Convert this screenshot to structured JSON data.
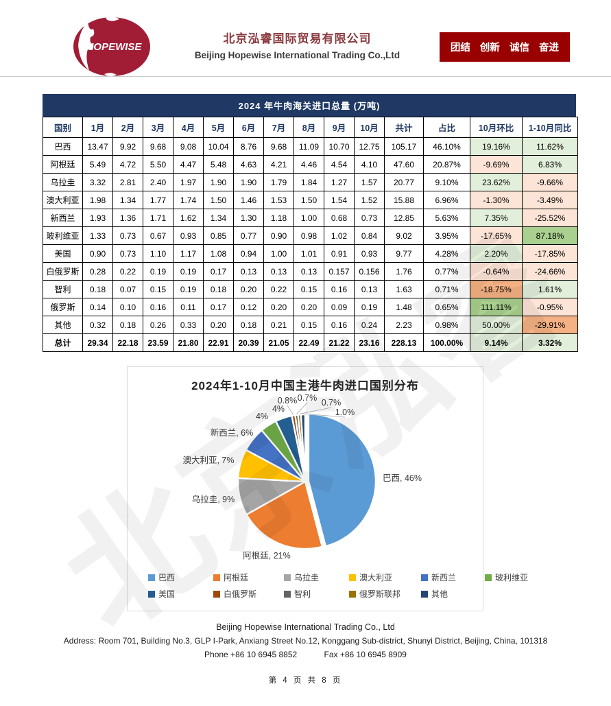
{
  "watermark": {
    "text": "北京泓睿"
  },
  "header": {
    "logo_text": "HOPEWISE",
    "logo_color": "#a01d35",
    "company_cn": "北京泓睿国际贸易有限公司",
    "company_en": "Beijing Hopewise International Trading Co.,Ltd",
    "slogan": "团结 创新 诚信 奋进",
    "slogan_bg": "#990000"
  },
  "table": {
    "title": "2024 年牛肉海关进口总量 (万吨)",
    "columns": [
      "国别",
      "1月",
      "2月",
      "3月",
      "4月",
      "5月",
      "6月",
      "7月",
      "8月",
      "9月",
      "10月",
      "共计",
      "占比",
      "10月环比",
      "1-10月同比"
    ],
    "rows": [
      {
        "name": "巴西",
        "months": [
          "13.47",
          "9.92",
          "9.68",
          "9.08",
          "10.04",
          "8.76",
          "9.68",
          "11.09",
          "10.70",
          "12.75"
        ],
        "total": "105.17",
        "share": "46.10%",
        "mom": {
          "text": "19.16%",
          "tone": "pos"
        },
        "yoy": {
          "text": "11.62%",
          "tone": "pos"
        }
      },
      {
        "name": "阿根廷",
        "months": [
          "5.49",
          "4.72",
          "5.50",
          "4.47",
          "5.48",
          "4.63",
          "4.21",
          "4.46",
          "4.54",
          "4.10"
        ],
        "total": "47.60",
        "share": "20.87%",
        "mom": {
          "text": "-9.69%",
          "tone": "neg"
        },
        "yoy": {
          "text": "6.83%",
          "tone": "pos"
        }
      },
      {
        "name": "乌拉圭",
        "months": [
          "3.32",
          "2.81",
          "2.40",
          "1.97",
          "1.90",
          "1.90",
          "1.79",
          "1.84",
          "1.27",
          "1.57"
        ],
        "total": "20.77",
        "share": "9.10%",
        "mom": {
          "text": "23.62%",
          "tone": "pos"
        },
        "yoy": {
          "text": "-9.66%",
          "tone": "neg"
        }
      },
      {
        "name": "澳大利亚",
        "months": [
          "1.98",
          "1.34",
          "1.77",
          "1.74",
          "1.50",
          "1.46",
          "1.53",
          "1.50",
          "1.54",
          "1.52"
        ],
        "total": "15.88",
        "share": "6.96%",
        "mom": {
          "text": "-1.30%",
          "tone": "neg"
        },
        "yoy": {
          "text": "-3.49%",
          "tone": "neg"
        }
      },
      {
        "name": "新西兰",
        "months": [
          "1.93",
          "1.36",
          "1.71",
          "1.62",
          "1.34",
          "1.30",
          "1.18",
          "1.00",
          "0.68",
          "0.73"
        ],
        "total": "12.85",
        "share": "5.63%",
        "mom": {
          "text": "7.35%",
          "tone": "pos"
        },
        "yoy": {
          "text": "-25.52%",
          "tone": "neg"
        }
      },
      {
        "name": "玻利维亚",
        "months": [
          "1.33",
          "0.73",
          "0.67",
          "0.93",
          "0.85",
          "0.77",
          "0.90",
          "0.98",
          "1.02",
          "0.84"
        ],
        "total": "9.02",
        "share": "3.95%",
        "mom": {
          "text": "-17.65%",
          "tone": "neg"
        },
        "yoy": {
          "text": "87.18%",
          "tone": "strong-pos"
        }
      },
      {
        "name": "美国",
        "months": [
          "0.90",
          "0.73",
          "1.10",
          "1.17",
          "1.08",
          "0.94",
          "1.00",
          "1.01",
          "0.91",
          "0.93"
        ],
        "total": "9.77",
        "share": "4.28%",
        "mom": {
          "text": "2.20%",
          "tone": "pos"
        },
        "yoy": {
          "text": "-17.85%",
          "tone": "neg"
        }
      },
      {
        "name": "白俄罗斯",
        "months": [
          "0.28",
          "0.22",
          "0.19",
          "0.19",
          "0.17",
          "0.13",
          "0.13",
          "0.13",
          "0.157",
          "0.156"
        ],
        "total": "1.76",
        "share": "0.77%",
        "mom": {
          "text": "-0.64%",
          "tone": "neg"
        },
        "yoy": {
          "text": "-24.66%",
          "tone": "neg"
        }
      },
      {
        "name": "智利",
        "months": [
          "0.18",
          "0.07",
          "0.15",
          "0.19",
          "0.18",
          "0.20",
          "0.22",
          "0.15",
          "0.16",
          "0.13"
        ],
        "total": "1.63",
        "share": "0.71%",
        "mom": {
          "text": "-18.75%",
          "tone": "strong-neg"
        },
        "yoy": {
          "text": "1.61%",
          "tone": "pos"
        }
      },
      {
        "name": "俄罗斯",
        "months": [
          "0.14",
          "0.10",
          "0.16",
          "0.11",
          "0.17",
          "0.12",
          "0.20",
          "0.20",
          "0.09",
          "0.19"
        ],
        "total": "1.48",
        "share": "0.65%",
        "mom": {
          "text": "111.11%",
          "tone": "strong-pos"
        },
        "yoy": {
          "text": "-0.95%",
          "tone": "neg"
        }
      },
      {
        "name": "其他",
        "months": [
          "0.32",
          "0.18",
          "0.26",
          "0.33",
          "0.20",
          "0.18",
          "0.21",
          "0.15",
          "0.16",
          "0.24"
        ],
        "total": "2.23",
        "share": "0.98%",
        "mom": {
          "text": "50.00%",
          "tone": "pos"
        },
        "yoy": {
          "text": "-29.91%",
          "tone": "strong-neg"
        }
      }
    ],
    "total_row": {
      "name": "总计",
      "months": [
        "29.34",
        "22.18",
        "23.59",
        "21.80",
        "22.91",
        "20.39",
        "21.05",
        "22.49",
        "21.22",
        "23.16"
      ],
      "total": "228.13",
      "share": "100.00%",
      "mom": {
        "text": "9.14%",
        "tone": "pos"
      },
      "yoy": {
        "text": "3.32%",
        "tone": "pos"
      }
    },
    "status_colors": {
      "pos": "#e2efda",
      "neg": "#fce4d6",
      "strong_pos": "#a9d08e",
      "strong_neg": "#f4b183",
      "header_bg": "#1f3864"
    }
  },
  "chart_data": {
    "type": "pie",
    "title": "2024年1-10月中国主港牛肉进口国别分布",
    "legend_position": "bottom",
    "slices": [
      {
        "name": "巴西",
        "value": 46,
        "label": "46%",
        "color": "#5B9BD5"
      },
      {
        "name": "阿根廷",
        "value": 21,
        "label": "21%",
        "color": "#ED7D31"
      },
      {
        "name": "乌拉圭",
        "value": 9,
        "label": "9%",
        "color": "#A5A5A5"
      },
      {
        "name": "澳大利亚",
        "value": 7,
        "label": "7%",
        "color": "#FFC000"
      },
      {
        "name": "新西兰",
        "value": 6,
        "label": "6%",
        "color": "#4472C4"
      },
      {
        "name": "玻利维亚",
        "value": 4,
        "label": "4%",
        "color": "#70AD47"
      },
      {
        "name": "美国",
        "value": 4,
        "label": "4%",
        "color": "#255E91"
      },
      {
        "name": "白俄罗斯",
        "value": 0.8,
        "label": "0.8%",
        "color": "#9E480E"
      },
      {
        "name": "智利",
        "value": 0.7,
        "label": "0.7%",
        "color": "#636363"
      },
      {
        "name": "俄罗斯联邦",
        "value": 0.7,
        "label": "0.7%",
        "color": "#997300"
      },
      {
        "name": "其他",
        "value": 1.0,
        "label": "1.0%",
        "color": "#264478"
      }
    ]
  },
  "footer": {
    "company": "Beijing Hopewise International Trading Co., Ltd",
    "address": "Address: Room 701, Building No.3, GLP I-Park, Anxiang Street No.12, Konggang Sub-district, Shunyi District, Beijing, China, 101318",
    "phone": "Phone +86 10 6945 8852",
    "fax": "Fax +86 10 6945 8909",
    "page_info": "第 4 页 共 8 页"
  }
}
